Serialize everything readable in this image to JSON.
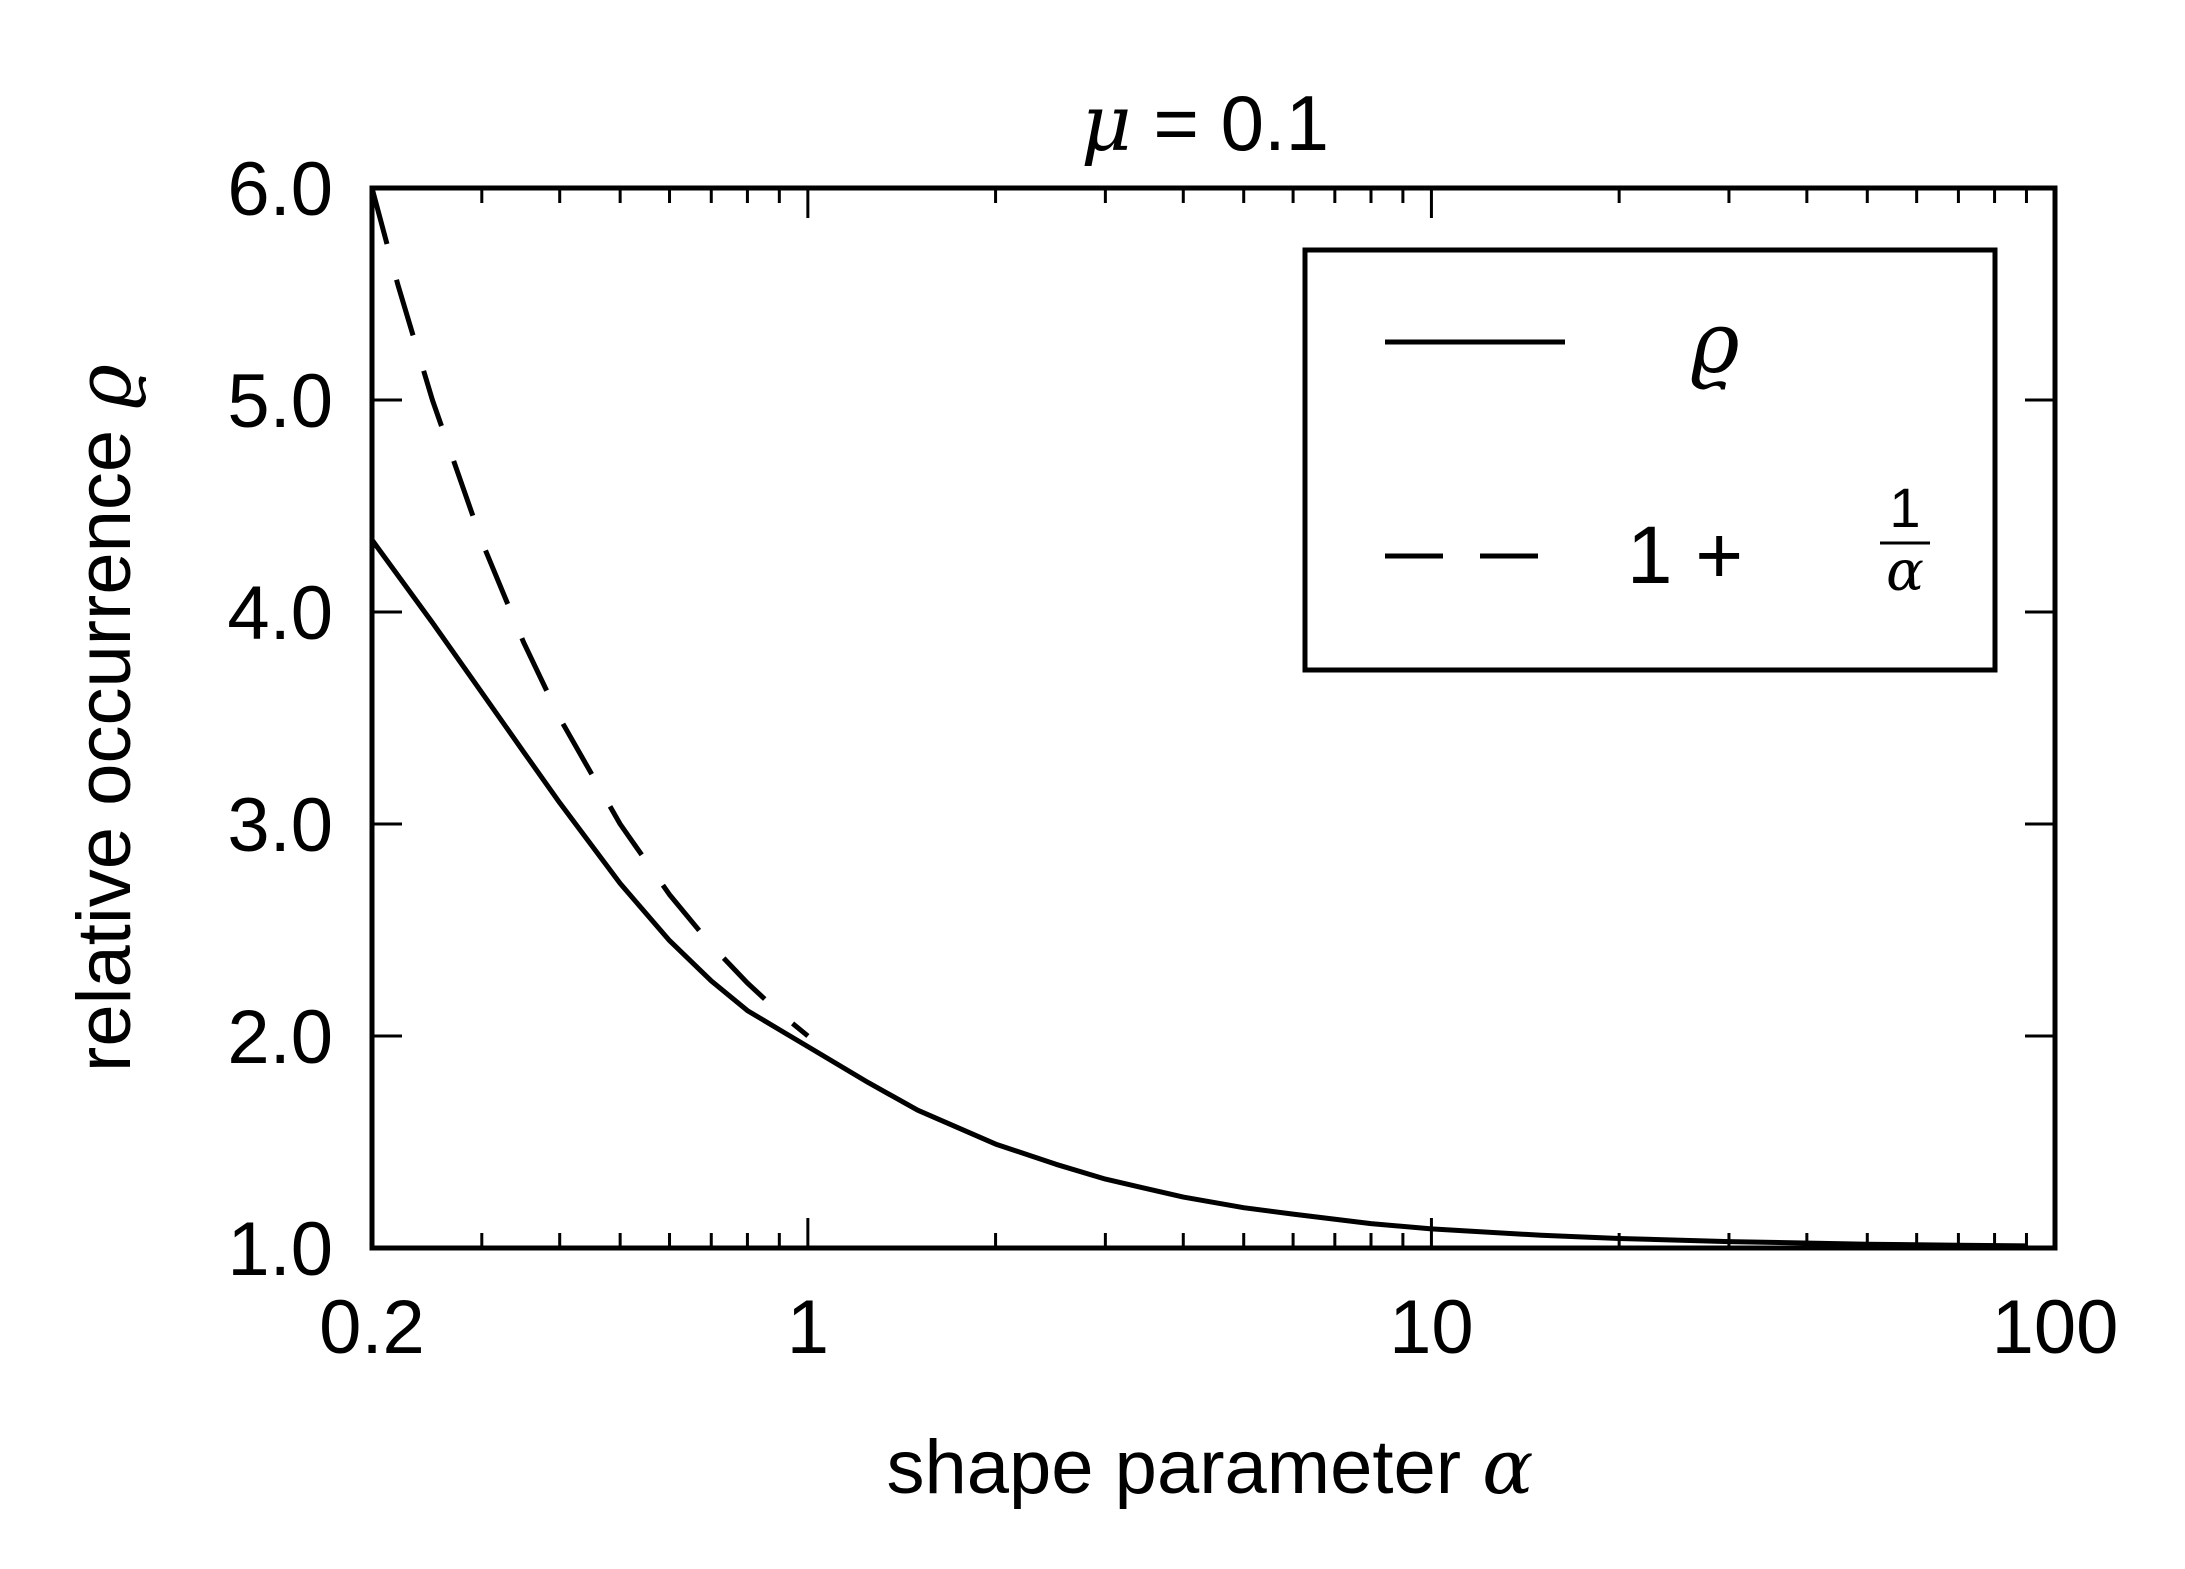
{
  "chart_data": {
    "type": "line",
    "title": {
      "symbol": "μ",
      "rest": " = 0.1"
    },
    "xlabel": {
      "text": "shape parameter ",
      "symbol": "α"
    },
    "ylabel": {
      "text": "relative occurrence ",
      "symbol": "ϱ"
    },
    "x_scale": "log",
    "xlim": [
      0.2,
      100
    ],
    "ylim": [
      1.0,
      6.0
    ],
    "x_ticks": [
      {
        "value": 0.2,
        "label": "0.2"
      },
      {
        "value": 1,
        "label": "1"
      },
      {
        "value": 10,
        "label": "10"
      },
      {
        "value": 100,
        "label": "100"
      }
    ],
    "y_ticks": [
      {
        "value": 1.0,
        "label": "1.0"
      },
      {
        "value": 2.0,
        "label": "2.0"
      },
      {
        "value": 3.0,
        "label": "3.0"
      },
      {
        "value": 4.0,
        "label": "4.0"
      },
      {
        "value": 5.0,
        "label": "5.0"
      },
      {
        "value": 6.0,
        "label": "6.0"
      }
    ],
    "grid": false,
    "legend_position": "top-right",
    "series": [
      {
        "key": "rho",
        "style": "solid",
        "legend": {
          "symbol": "ϱ"
        },
        "points": [
          [
            0.2,
            4.34
          ],
          [
            0.25,
            3.95
          ],
          [
            0.3,
            3.62
          ],
          [
            0.35,
            3.34
          ],
          [
            0.4,
            3.1
          ],
          [
            0.5,
            2.72
          ],
          [
            0.6,
            2.45
          ],
          [
            0.7,
            2.26
          ],
          [
            0.8,
            2.12
          ],
          [
            0.9,
            2.03
          ],
          [
            1,
            1.95
          ],
          [
            1.25,
            1.78
          ],
          [
            1.5,
            1.65
          ],
          [
            2,
            1.49
          ],
          [
            2.5,
            1.395
          ],
          [
            3,
            1.325
          ],
          [
            4,
            1.24
          ],
          [
            5,
            1.19
          ],
          [
            6,
            1.16
          ],
          [
            8,
            1.115
          ],
          [
            10,
            1.09
          ],
          [
            15,
            1.06
          ],
          [
            20,
            1.045
          ],
          [
            30,
            1.03
          ],
          [
            50,
            1.018
          ],
          [
            70,
            1.013
          ],
          [
            90,
            1.01
          ]
        ]
      },
      {
        "key": "one_plus_inv_alpha",
        "style": "dashed",
        "legend": {
          "prefix": "1 + ",
          "numerator": "1",
          "denominator": "α"
        },
        "points": [
          [
            0.2,
            6.0
          ],
          [
            0.22,
            5.545
          ],
          [
            0.25,
            5.0
          ],
          [
            0.3,
            4.333
          ],
          [
            0.35,
            3.857
          ],
          [
            0.4,
            3.5
          ],
          [
            0.5,
            3.0
          ],
          [
            0.6,
            2.667
          ],
          [
            0.7,
            2.429
          ],
          [
            0.8,
            2.25
          ],
          [
            0.9,
            2.111
          ],
          [
            1,
            2.0
          ]
        ]
      }
    ]
  }
}
